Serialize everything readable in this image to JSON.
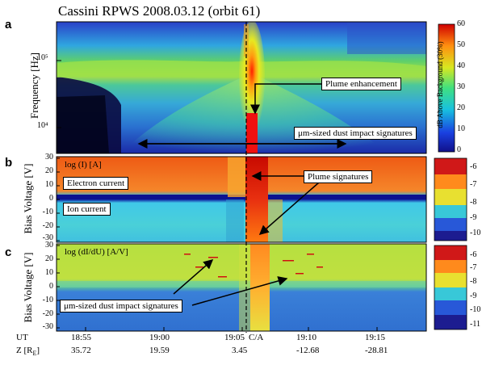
{
  "figure": {
    "title": "Cassini RPWS 2008.03.12 (orbit 61)"
  },
  "panels": {
    "a": {
      "label": "a",
      "ylabel": "Frequency [Hz]",
      "yticks": [
        "10⁵",
        "10⁴"
      ],
      "colorbar_label": "dB Above Background (30%)",
      "colorbar_ticks": [
        "60",
        "50",
        "40",
        "30",
        "20",
        "10",
        "0"
      ],
      "annotations": {
        "plume": "Plume enhancement",
        "dust": "μm-sized dust impact signatures"
      }
    },
    "b": {
      "label": "b",
      "ylabel": "Bias Voltage [V]",
      "yticks": [
        "30",
        "20",
        "10",
        "0",
        "-10",
        "-20",
        "-30"
      ],
      "inner_title": "log (I) [A]",
      "electron_label": "Electron current",
      "ion_label": "Ion current",
      "plume_label": "Plume signatures",
      "colorbar_ticks": [
        "-6",
        "-7",
        "-8",
        "-9",
        "-10"
      ]
    },
    "c": {
      "label": "c",
      "ylabel": "Bias Voltage [V]",
      "yticks": [
        "30",
        "20",
        "10",
        "0",
        "-10",
        "-20",
        "-30"
      ],
      "inner_title": "log (dI/dU) [A/V]",
      "dust_label": "μm-sized dust impact signatures",
      "colorbar_ticks": [
        "-6",
        "-7",
        "-8",
        "-9",
        "-10",
        "-11"
      ]
    }
  },
  "xaxis": {
    "ut_label": "UT",
    "z_label": "Z [R",
    "z_sub": "E",
    "z_close": "]",
    "ticks": [
      {
        "ut": "18:55",
        "z": "35.72"
      },
      {
        "ut": "19:00",
        "z": "19.59"
      },
      {
        "ut": "19:05",
        "z": "3.45"
      },
      {
        "ut": "19:10",
        "z": "-12.68"
      },
      {
        "ut": "19:15",
        "z": "-28.81"
      }
    ],
    "ca_label": "C/A"
  },
  "chart_data": {
    "type": "heatmap",
    "title": "Cassini RPWS 2008.03.12 (orbit 61)",
    "x_ticks_ut": [
      "18:55",
      "19:00",
      "19:05",
      "19:10",
      "19:15"
    ],
    "x_ticks_z": [
      35.72,
      19.59,
      3.45,
      -12.68,
      -28.81
    ],
    "closest_approach_label": "C/A",
    "panels": [
      {
        "id": "a",
        "ylabel": "Frequency [Hz]",
        "yscale": "log",
        "yticks": [
          10000,
          100000
        ],
        "colorbar": {
          "label": "dB Above Background (30%)",
          "range": [
            0,
            60
          ]
        },
        "annotations": [
          "Plume enhancement",
          "μm-sized dust impact signatures"
        ]
      },
      {
        "id": "b",
        "ylabel": "Bias Voltage [V]",
        "ylim": [
          -30,
          30
        ],
        "inner_title": "log (I) [A]",
        "colorbar": {
          "range": [
            -10.5,
            -5.8
          ]
        },
        "annotations": [
          "Electron current",
          "Ion current",
          "Plume signatures"
        ]
      },
      {
        "id": "c",
        "ylabel": "Bias Voltage [V]",
        "ylim": [
          -30,
          30
        ],
        "inner_title": "log (dI/dU) [A/V]",
        "colorbar": {
          "range": [
            -11.5,
            -5.5
          ]
        },
        "annotations": [
          "μm-sized dust impact signatures"
        ]
      }
    ]
  }
}
